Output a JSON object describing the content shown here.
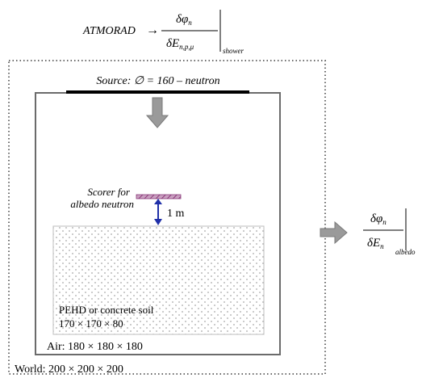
{
  "equation_top": {
    "lhs": "ATMORAD",
    "arrow": "→",
    "numerator": "δφ",
    "num_sub": "n",
    "denominator": "δE",
    "den_sub": "n,p,μ",
    "eval_sub": "shower"
  },
  "source_label": "Source: ∅ = 160 – neutron",
  "scorer_label_line1": "Scorer for",
  "scorer_label_line2": "albedo neutron",
  "distance_label": "1 m",
  "soil_label_line1": "PEHD or concrete soil",
  "soil_label_line2": "170 × 170 × 80",
  "air_label": "Air: 180 × 180 × 180",
  "world_label": "World: 200 × 200 × 200",
  "equation_right": {
    "numerator": "δφ",
    "num_sub": "n",
    "denominator": "δE",
    "den_sub": "n",
    "eval_sub": "albedo"
  },
  "colors": {
    "scorer_fill": "#c9a0c0",
    "scorer_hatch": "#8b3a7a",
    "distance_arrow": "#1f2fa8",
    "block_arrow": "#9a9a9a",
    "soil_dots": "#a8a8a8"
  }
}
